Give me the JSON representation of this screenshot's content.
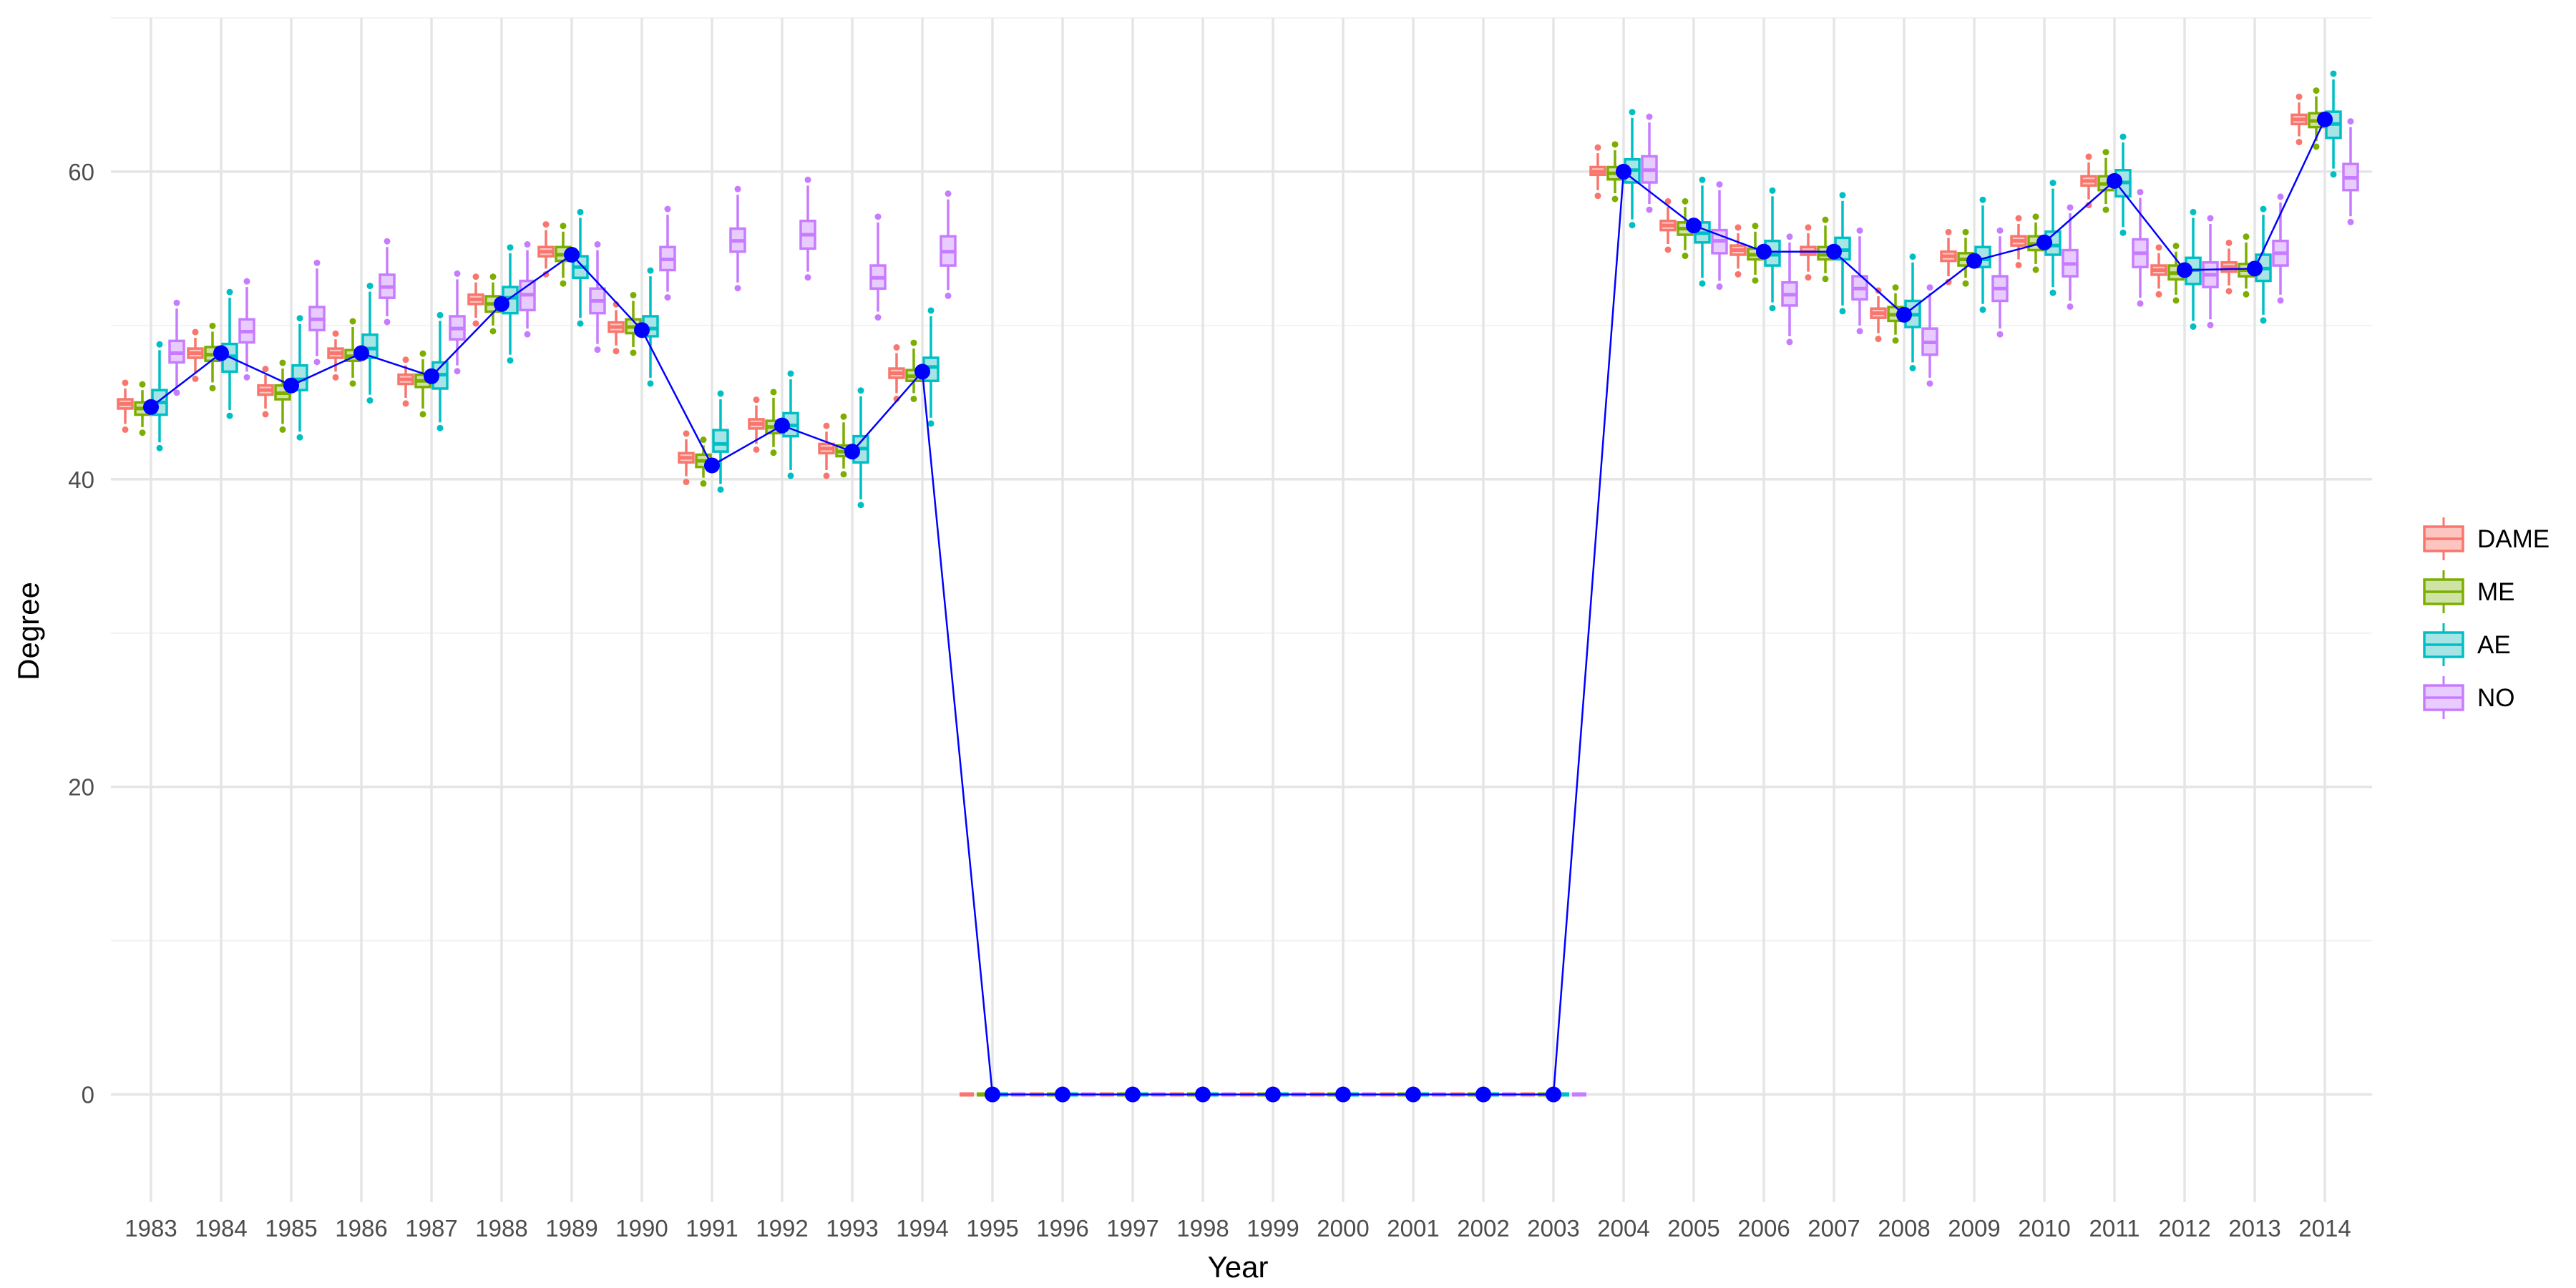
{
  "chart_data": {
    "type": "box",
    "title": "",
    "xlabel": "Year",
    "ylabel": "Degree",
    "ylim": [
      -7,
      70
    ],
    "y_ticks": [
      0,
      20,
      40,
      60
    ],
    "y_tick_labels": [
      "0",
      "20",
      "40",
      "60"
    ],
    "grid": true,
    "legend_position": "right",
    "categories": [
      "1983",
      "1984",
      "1985",
      "1986",
      "1987",
      "1988",
      "1989",
      "1990",
      "1991",
      "1992",
      "1993",
      "1994",
      "1995",
      "1996",
      "1997",
      "1998",
      "1999",
      "2000",
      "2001",
      "2002",
      "2003",
      "2004",
      "2005",
      "2006",
      "2007",
      "2008",
      "2009",
      "2010",
      "2011",
      "2012",
      "2013",
      "2014"
    ],
    "series": [
      {
        "name": "DAME",
        "color": "#F8766D",
        "fill": "#FCC5C0",
        "q1": [
          44.6,
          47.9,
          45.5,
          47.9,
          46.2,
          51.4,
          54.5,
          49.6,
          41.1,
          43.3,
          41.7,
          46.6,
          0,
          0,
          0,
          0,
          0,
          0,
          0,
          0,
          0,
          59.8,
          56.2,
          54.6,
          54.6,
          50.5,
          54.2,
          55.2,
          59.1,
          53.3,
          53.5,
          63.1
        ],
        "median": [
          44.9,
          48.2,
          45.8,
          48.2,
          46.5,
          51.7,
          54.8,
          49.9,
          41.4,
          43.6,
          42.0,
          46.9,
          0,
          0,
          0,
          0,
          0,
          0,
          0,
          0,
          0,
          60.0,
          56.5,
          54.9,
          54.8,
          50.8,
          54.5,
          55.5,
          59.4,
          53.6,
          53.8,
          63.4
        ],
        "q3": [
          45.2,
          48.5,
          46.1,
          48.5,
          46.8,
          52.0,
          55.1,
          50.2,
          41.7,
          43.9,
          42.3,
          47.2,
          0,
          0,
          0,
          0,
          0,
          0,
          0,
          0,
          0,
          60.3,
          56.8,
          55.2,
          55.1,
          51.1,
          54.8,
          55.8,
          59.7,
          53.9,
          54.1,
          63.7
        ],
        "low": [
          43.6,
          46.9,
          44.6,
          47.0,
          45.3,
          50.5,
          53.7,
          48.7,
          40.2,
          42.3,
          40.6,
          45.6,
          0,
          0,
          0,
          0,
          0,
          0,
          0,
          0,
          0,
          58.8,
          55.3,
          53.7,
          53.5,
          49.5,
          53.2,
          54.3,
          58.2,
          52.4,
          52.6,
          62.3
        ],
        "high": [
          45.9,
          49.2,
          46.8,
          49.1,
          47.4,
          52.8,
          56.2,
          51.0,
          42.6,
          44.8,
          43.1,
          48.2,
          0,
          0,
          0,
          0,
          0,
          0,
          0,
          0,
          0,
          61.2,
          57.7,
          56.0,
          56.0,
          51.9,
          55.7,
          56.6,
          60.6,
          54.7,
          55.0,
          64.5
        ]
      },
      {
        "name": "ME",
        "color": "#7CAE00",
        "fill": "#CFE3A6",
        "q1": [
          44.2,
          47.7,
          45.2,
          47.7,
          46.0,
          50.9,
          54.2,
          49.5,
          40.8,
          43.0,
          41.5,
          46.4,
          0,
          0,
          0,
          0,
          0,
          0,
          0,
          0,
          0,
          59.5,
          55.9,
          54.3,
          54.3,
          50.3,
          53.9,
          54.9,
          58.8,
          53.0,
          53.2,
          62.9
        ],
        "median": [
          44.6,
          48.1,
          45.6,
          48.0,
          46.4,
          51.4,
          54.6,
          49.9,
          41.2,
          43.4,
          41.8,
          46.7,
          0,
          0,
          0,
          0,
          0,
          0,
          0,
          0,
          0,
          59.9,
          56.3,
          54.6,
          54.6,
          50.7,
          54.3,
          55.3,
          59.2,
          53.4,
          53.6,
          63.3
        ],
        "q3": [
          45.0,
          48.6,
          46.1,
          48.4,
          46.8,
          51.9,
          55.1,
          50.4,
          41.6,
          43.8,
          42.2,
          47.1,
          0,
          0,
          0,
          0,
          0,
          0,
          0,
          0,
          0,
          60.3,
          56.7,
          55.0,
          55.1,
          51.2,
          54.7,
          55.8,
          59.7,
          53.9,
          54.0,
          63.8
        ],
        "low": [
          43.4,
          46.3,
          43.6,
          46.6,
          44.6,
          50.0,
          53.1,
          48.6,
          40.1,
          42.1,
          40.7,
          45.6,
          0,
          0,
          0,
          0,
          0,
          0,
          0,
          0,
          0,
          58.6,
          54.9,
          53.3,
          53.4,
          49.4,
          53.1,
          54.0,
          57.9,
          52.0,
          52.4,
          62.0
        ],
        "high": [
          45.8,
          49.6,
          47.2,
          49.9,
          47.8,
          52.8,
          56.1,
          51.6,
          42.2,
          45.3,
          43.7,
          48.5,
          0,
          0,
          0,
          0,
          0,
          0,
          0,
          0,
          0,
          61.4,
          57.7,
          56.1,
          56.5,
          52.1,
          55.7,
          56.7,
          60.9,
          54.8,
          55.4,
          64.9
        ]
      },
      {
        "name": "AE",
        "color": "#00BFC4",
        "fill": "#A6E4E6",
        "q1": [
          44.2,
          47.0,
          45.8,
          47.9,
          45.9,
          50.8,
          53.1,
          49.3,
          41.8,
          42.8,
          41.1,
          46.4,
          0,
          0,
          0,
          0,
          0,
          0,
          0,
          0,
          0,
          59.3,
          55.4,
          53.9,
          54.3,
          49.9,
          53.8,
          54.6,
          58.4,
          52.7,
          52.9,
          62.2
        ],
        "median": [
          45.0,
          48.0,
          46.5,
          48.5,
          46.8,
          51.8,
          53.8,
          49.8,
          42.3,
          43.5,
          42.0,
          47.3,
          0,
          0,
          0,
          0,
          0,
          0,
          0,
          0,
          0,
          60.1,
          56.0,
          54.6,
          54.9,
          50.7,
          54.3,
          55.2,
          59.3,
          53.6,
          53.7,
          63.1
        ],
        "q3": [
          45.8,
          48.8,
          47.4,
          49.4,
          47.6,
          52.5,
          54.5,
          50.6,
          43.2,
          44.3,
          42.8,
          47.9,
          0,
          0,
          0,
          0,
          0,
          0,
          0,
          0,
          0,
          60.8,
          56.7,
          55.5,
          55.7,
          51.6,
          55.1,
          56.1,
          60.1,
          54.4,
          54.6,
          63.9
        ],
        "low": [
          42.4,
          44.5,
          43.1,
          45.5,
          43.7,
          48.1,
          50.5,
          46.6,
          39.7,
          40.6,
          38.7,
          44.0,
          0,
          0,
          0,
          0,
          0,
          0,
          0,
          0,
          0,
          56.9,
          53.1,
          51.5,
          51.3,
          47.6,
          51.4,
          52.5,
          56.4,
          50.3,
          50.7,
          60.2
        ],
        "high": [
          48.4,
          51.8,
          50.1,
          52.2,
          50.3,
          54.7,
          57.0,
          53.2,
          45.2,
          46.5,
          45.4,
          50.6,
          0,
          0,
          0,
          0,
          0,
          0,
          0,
          0,
          0,
          63.5,
          59.1,
          58.4,
          58.1,
          54.1,
          57.8,
          58.9,
          61.9,
          57.0,
          57.2,
          66.0
        ]
      },
      {
        "name": "NO",
        "color": "#C77CFF",
        "fill": "#E8CCFF",
        "q1": [
          47.6,
          48.9,
          49.7,
          51.8,
          49.1,
          51.0,
          50.8,
          53.6,
          54.8,
          55.0,
          52.4,
          53.9,
          0,
          0,
          0,
          0,
          0,
          0,
          0,
          0,
          0,
          59.3,
          54.7,
          51.3,
          51.7,
          48.1,
          51.6,
          53.2,
          53.8,
          52.5,
          53.9,
          58.8
        ],
        "median": [
          48.2,
          49.6,
          50.4,
          52.5,
          49.8,
          52.0,
          51.6,
          54.3,
          55.5,
          55.9,
          53.1,
          54.8,
          0,
          0,
          0,
          0,
          0,
          0,
          0,
          0,
          0,
          60.1,
          55.5,
          52.0,
          52.4,
          48.9,
          52.4,
          54.0,
          54.7,
          53.3,
          54.7,
          59.6
        ],
        "q3": [
          49.0,
          50.4,
          51.2,
          53.3,
          50.6,
          52.9,
          52.4,
          55.1,
          56.3,
          56.8,
          53.9,
          55.8,
          0,
          0,
          0,
          0,
          0,
          0,
          0,
          0,
          0,
          61.0,
          56.2,
          52.8,
          53.2,
          49.8,
          53.2,
          54.9,
          55.6,
          54.1,
          55.5,
          60.5
        ],
        "low": [
          46.0,
          47.0,
          48.0,
          50.6,
          47.4,
          49.8,
          48.8,
          52.2,
          52.8,
          53.5,
          50.9,
          52.3,
          0,
          0,
          0,
          0,
          0,
          0,
          0,
          0,
          0,
          57.9,
          52.9,
          49.3,
          50.0,
          46.6,
          49.8,
          51.6,
          51.8,
          50.4,
          52.0,
          57.1
        ],
        "high": [
          51.1,
          52.5,
          53.7,
          55.1,
          53.0,
          54.9,
          54.9,
          57.2,
          58.5,
          59.1,
          56.7,
          58.2,
          0,
          0,
          0,
          0,
          0,
          0,
          0,
          0,
          0,
          63.2,
          58.8,
          55.4,
          55.8,
          52.1,
          55.8,
          57.3,
          58.3,
          56.6,
          58.0,
          62.9
        ]
      }
    ],
    "mean_line": {
      "color": "#0000FF",
      "values": [
        44.7,
        48.2,
        46.1,
        48.2,
        46.7,
        51.4,
        54.6,
        49.7,
        40.9,
        43.5,
        41.8,
        47.0,
        0,
        0,
        0,
        0,
        0,
        0,
        0,
        0,
        0,
        60.0,
        56.5,
        54.8,
        54.8,
        50.7,
        54.2,
        55.4,
        59.4,
        53.6,
        53.7,
        63.4
      ]
    },
    "legend": [
      {
        "label": "DAME",
        "color": "#F8766D",
        "fill": "#FCC5C0"
      },
      {
        "label": "ME",
        "color": "#7CAE00",
        "fill": "#CFE3A6"
      },
      {
        "label": "AE",
        "color": "#00BFC4",
        "fill": "#A6E4E6"
      },
      {
        "label": "NO",
        "color": "#C77CFF",
        "fill": "#E8CCFF"
      }
    ]
  }
}
